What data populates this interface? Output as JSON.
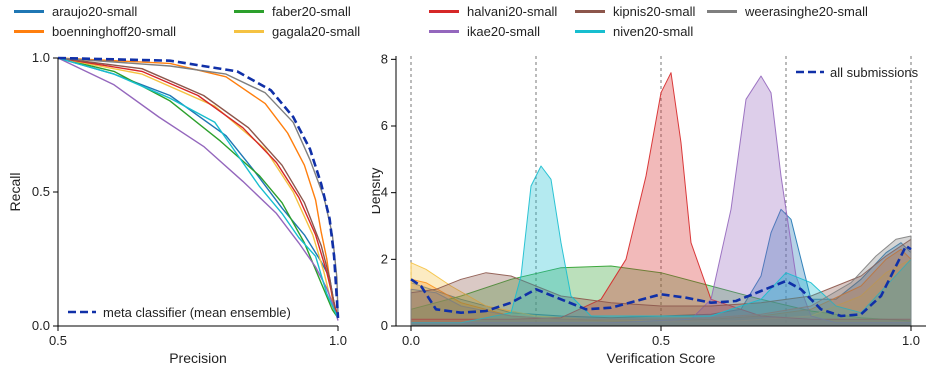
{
  "legend": {
    "items": [
      {
        "name": "araujo20-small",
        "color": "#1f77b4"
      },
      {
        "name": "boenninghoff20-small",
        "color": "#ff7f0e"
      },
      {
        "name": "faber20-small",
        "color": "#2ca02c"
      },
      {
        "name": "gagala20-small",
        "color": "#f5c242"
      },
      {
        "name": "halvani20-small",
        "color": "#d62728"
      },
      {
        "name": "ikae20-small",
        "color": "#9467bd"
      },
      {
        "name": "kipnis20-small",
        "color": "#8c564b"
      },
      {
        "name": "niven20-small",
        "color": "#17becf"
      },
      {
        "name": "weerasinghe20-small",
        "color": "#7f7f7f"
      }
    ]
  },
  "chart_data": [
    {
      "type": "line",
      "xlabel": "Precision",
      "ylabel": "Recall",
      "xlim": [
        0.5,
        1.0
      ],
      "ylim": [
        0.0,
        1.0
      ],
      "xticks": [
        "0.5",
        "1.0"
      ],
      "yticks": [
        "0.0",
        "0.5",
        "1.0"
      ],
      "legend_position": "bottom-left",
      "legend_label": "meta classifier (mean ensemble)",
      "series": [
        {
          "name": "araujo20-small",
          "color": "#1f77b4",
          "x": [
            0.5,
            0.6,
            0.7,
            0.8,
            0.85,
            0.9,
            0.94,
            0.97,
            0.985,
            0.995,
            1.0
          ],
          "y": [
            1.0,
            0.94,
            0.86,
            0.71,
            0.58,
            0.44,
            0.34,
            0.24,
            0.18,
            0.06,
            0.03
          ]
        },
        {
          "name": "boenninghoff20-small",
          "color": "#ff7f0e",
          "x": [
            0.5,
            0.7,
            0.8,
            0.87,
            0.91,
            0.94,
            0.96,
            0.97,
            0.98,
            0.99,
            1.0
          ],
          "y": [
            1.0,
            0.98,
            0.93,
            0.83,
            0.72,
            0.6,
            0.47,
            0.35,
            0.25,
            0.1,
            0.03
          ]
        },
        {
          "name": "faber20-small",
          "color": "#2ca02c",
          "x": [
            0.5,
            0.6,
            0.7,
            0.79,
            0.86,
            0.9,
            0.94,
            0.97,
            0.99,
            1.0
          ],
          "y": [
            1.0,
            0.95,
            0.84,
            0.69,
            0.56,
            0.46,
            0.31,
            0.16,
            0.06,
            0.03
          ]
        },
        {
          "name": "gagala20-small",
          "color": "#f5c242",
          "x": [
            0.5,
            0.65,
            0.78,
            0.87,
            0.92,
            0.955,
            0.975,
            0.99,
            1.0
          ],
          "y": [
            1.0,
            0.94,
            0.82,
            0.66,
            0.5,
            0.34,
            0.2,
            0.07,
            0.04
          ]
        },
        {
          "name": "halvani20-small",
          "color": "#d62728",
          "x": [
            0.5,
            0.65,
            0.75,
            0.83,
            0.89,
            0.93,
            0.96,
            0.98,
            0.995,
            1.0
          ],
          "y": [
            1.0,
            0.95,
            0.86,
            0.74,
            0.61,
            0.48,
            0.34,
            0.2,
            0.07,
            0.04
          ]
        },
        {
          "name": "ikae20-small",
          "color": "#9467bd",
          "x": [
            0.5,
            0.6,
            0.68,
            0.76,
            0.83,
            0.89,
            0.93,
            0.96,
            0.98,
            0.995,
            1.0
          ],
          "y": [
            1.0,
            0.9,
            0.78,
            0.67,
            0.54,
            0.42,
            0.31,
            0.22,
            0.14,
            0.06,
            0.02
          ]
        },
        {
          "name": "kipnis20-small",
          "color": "#8c564b",
          "x": [
            0.5,
            0.65,
            0.76,
            0.84,
            0.9,
            0.94,
            0.97,
            0.985,
            0.995,
            1.0
          ],
          "y": [
            1.0,
            0.96,
            0.86,
            0.74,
            0.6,
            0.46,
            0.3,
            0.18,
            0.06,
            0.03
          ]
        },
        {
          "name": "niven20-small",
          "color": "#17becf",
          "x": [
            0.5,
            0.6,
            0.7,
            0.78,
            0.82,
            0.86,
            0.9,
            0.93,
            0.96,
            0.98,
            1.0
          ],
          "y": [
            1.0,
            0.94,
            0.85,
            0.76,
            0.64,
            0.52,
            0.42,
            0.33,
            0.26,
            0.12,
            0.03
          ]
        },
        {
          "name": "weerasinghe20-small",
          "color": "#7f7f7f",
          "x": [
            0.5,
            0.7,
            0.8,
            0.87,
            0.92,
            0.95,
            0.975,
            0.99,
            0.998,
            1.0
          ],
          "y": [
            1.0,
            0.97,
            0.94,
            0.87,
            0.76,
            0.62,
            0.48,
            0.34,
            0.18,
            0.04
          ]
        },
        {
          "name": "meta classifier (mean ensemble)",
          "color": "#1030a8",
          "dashed": true,
          "x": [
            0.5,
            0.7,
            0.82,
            0.88,
            0.92,
            0.95,
            0.97,
            0.985,
            0.993,
            0.998,
            1.0
          ],
          "y": [
            1.0,
            0.99,
            0.95,
            0.88,
            0.78,
            0.66,
            0.53,
            0.4,
            0.26,
            0.1,
            0.03
          ]
        }
      ]
    },
    {
      "type": "area",
      "xlabel": "Verification Score",
      "ylabel": "Density",
      "xlim": [
        -0.03,
        1.03
      ],
      "ylim": [
        0,
        8.1
      ],
      "xticks": [
        "0.0",
        "0.5",
        "1.0"
      ],
      "yticks": [
        "0",
        "2",
        "4",
        "6",
        "8"
      ],
      "vlines": [
        0.0,
        0.25,
        0.5,
        0.75,
        1.0
      ],
      "legend_position": "top-right",
      "legend_label": "all submissions",
      "series": [
        {
          "name": "araujo20-small",
          "color": "#1f77b4",
          "x": [
            0,
            0.02,
            0.1,
            0.2,
            0.3,
            0.4,
            0.5,
            0.6,
            0.66,
            0.7,
            0.72,
            0.74,
            0.76,
            0.78,
            0.8,
            0.85,
            0.9,
            0.95,
            0.98,
            1.0
          ],
          "y": [
            1.3,
            1.2,
            0.8,
            0.4,
            0.3,
            0.25,
            0.3,
            0.35,
            0.5,
            1.5,
            2.8,
            3.5,
            3.2,
            2.0,
            0.8,
            0.8,
            1.4,
            2.2,
            2.5,
            2.2
          ]
        },
        {
          "name": "boenninghoff20-small",
          "color": "#ff7f0e",
          "x": [
            0,
            0.03,
            0.1,
            0.2,
            0.3,
            0.4,
            0.5,
            0.6,
            0.7,
            0.8,
            0.9,
            0.95,
            0.98,
            1.0
          ],
          "y": [
            1.4,
            1.3,
            0.7,
            0.3,
            0.2,
            0.15,
            0.15,
            0.2,
            0.3,
            0.5,
            1.2,
            2.0,
            2.3,
            2.0
          ]
        },
        {
          "name": "faber20-small",
          "color": "#2ca02c",
          "x": [
            0,
            0.1,
            0.2,
            0.3,
            0.4,
            0.5,
            0.6,
            0.7,
            0.8,
            0.9,
            1.0
          ],
          "y": [
            0.5,
            0.9,
            1.4,
            1.75,
            1.8,
            1.6,
            1.2,
            0.8,
            0.45,
            0.25,
            0.15
          ]
        },
        {
          "name": "gagala20-small",
          "color": "#f5c242",
          "x": [
            0,
            0.03,
            0.08,
            0.15,
            0.25,
            0.35,
            0.5,
            0.65,
            0.8,
            0.9,
            0.95,
            1.0
          ],
          "y": [
            1.9,
            1.7,
            1.2,
            0.6,
            0.3,
            0.2,
            0.15,
            0.15,
            0.3,
            0.9,
            1.6,
            2.0
          ]
        },
        {
          "name": "halvani20-small",
          "color": "#d62728",
          "x": [
            0,
            0.1,
            0.2,
            0.3,
            0.38,
            0.43,
            0.47,
            0.5,
            0.52,
            0.54,
            0.56,
            0.6,
            0.7,
            0.8,
            0.9,
            1.0
          ],
          "y": [
            0.2,
            0.2,
            0.2,
            0.25,
            0.8,
            2.0,
            4.5,
            7.0,
            7.6,
            5.5,
            2.5,
            0.8,
            0.3,
            0.2,
            0.2,
            0.2
          ]
        },
        {
          "name": "ikae20-small",
          "color": "#9467bd",
          "x": [
            0,
            0.2,
            0.4,
            0.56,
            0.6,
            0.64,
            0.67,
            0.7,
            0.72,
            0.74,
            0.77,
            0.8,
            0.85,
            0.9,
            1.0
          ],
          "y": [
            0.1,
            0.1,
            0.1,
            0.2,
            0.8,
            3.5,
            6.8,
            7.5,
            7.0,
            4.5,
            1.5,
            0.3,
            0.1,
            0.1,
            0.1
          ]
        },
        {
          "name": "kipnis20-small",
          "color": "#8c564b",
          "x": [
            0,
            0.05,
            0.1,
            0.15,
            0.2,
            0.25,
            0.3,
            0.4,
            0.5,
            0.6,
            0.7,
            0.8,
            0.9,
            0.95,
            1.0
          ],
          "y": [
            1.0,
            1.1,
            1.4,
            1.6,
            1.5,
            1.2,
            0.9,
            0.7,
            0.6,
            0.6,
            0.7,
            0.9,
            1.5,
            2.1,
            2.6
          ]
        },
        {
          "name": "niven20-small",
          "color": "#17becf",
          "x": [
            0,
            0.1,
            0.2,
            0.22,
            0.24,
            0.26,
            0.28,
            0.3,
            0.32,
            0.36,
            0.4,
            0.5,
            0.6,
            0.7,
            0.75,
            0.8,
            0.85,
            0.9,
            1.0
          ],
          "y": [
            0.1,
            0.1,
            0.4,
            1.5,
            4.2,
            4.8,
            4.4,
            2.5,
            0.9,
            0.3,
            0.3,
            0.3,
            0.3,
            0.8,
            1.6,
            1.3,
            0.6,
            0.4,
            2.0
          ]
        },
        {
          "name": "weerasinghe20-small",
          "color": "#7f7f7f",
          "x": [
            0,
            0.05,
            0.1,
            0.2,
            0.3,
            0.4,
            0.5,
            0.6,
            0.7,
            0.8,
            0.88,
            0.93,
            0.97,
            1.0
          ],
          "y": [
            1.1,
            1.0,
            0.6,
            0.3,
            0.2,
            0.2,
            0.2,
            0.25,
            0.35,
            0.6,
            1.3,
            2.1,
            2.6,
            2.7
          ]
        },
        {
          "name": "all submissions",
          "color": "#1030a8",
          "dashed": true,
          "fill": false,
          "x": [
            0,
            0.02,
            0.05,
            0.1,
            0.15,
            0.2,
            0.25,
            0.3,
            0.35,
            0.4,
            0.45,
            0.5,
            0.55,
            0.6,
            0.65,
            0.7,
            0.75,
            0.78,
            0.82,
            0.86,
            0.9,
            0.94,
            0.97,
            0.99,
            1.0
          ],
          "y": [
            1.4,
            1.2,
            0.5,
            0.4,
            0.45,
            0.7,
            1.1,
            0.8,
            0.5,
            0.55,
            0.75,
            0.95,
            0.85,
            0.7,
            0.75,
            1.05,
            1.35,
            1.1,
            0.5,
            0.3,
            0.35,
            0.9,
            1.8,
            2.4,
            2.3
          ]
        }
      ]
    }
  ]
}
